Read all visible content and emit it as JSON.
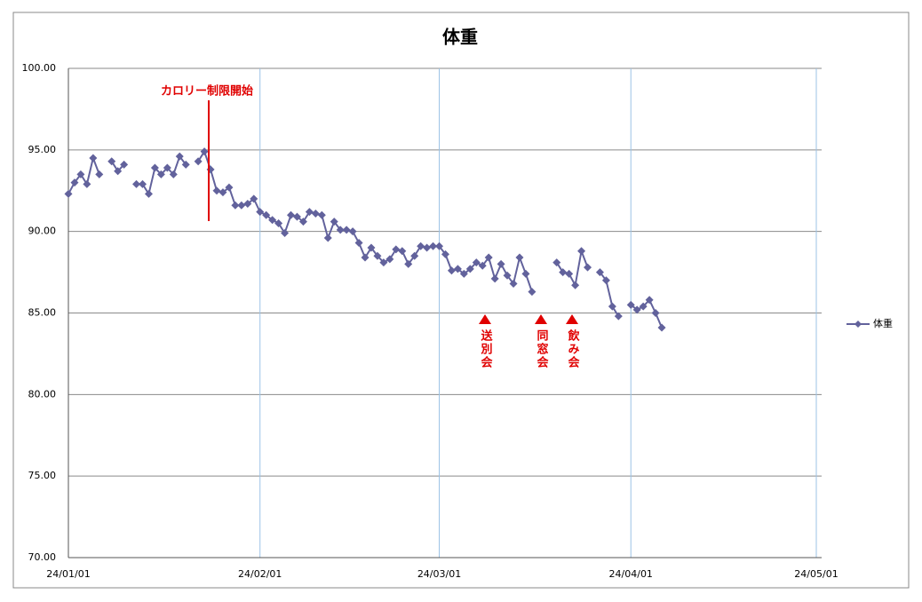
{
  "chart_data": {
    "type": "line",
    "title": "体重",
    "x": [
      "24/01/01",
      "24/01/02",
      "24/01/03",
      "24/01/04",
      "24/01/05",
      "24/01/06",
      "24/01/07",
      "24/01/08",
      "24/01/09",
      "24/01/10",
      "24/01/11",
      "24/01/12",
      "24/01/13",
      "24/01/14",
      "24/01/15",
      "24/01/16",
      "24/01/17",
      "24/01/18",
      "24/01/19",
      "24/01/20",
      "24/01/21",
      "24/01/22",
      "24/01/23",
      "24/01/24",
      "24/01/25",
      "24/01/26",
      "24/01/27",
      "24/01/28",
      "24/01/29",
      "24/01/30",
      "24/01/31",
      "24/02/01",
      "24/02/02",
      "24/02/03",
      "24/02/04",
      "24/02/05",
      "24/02/06",
      "24/02/07",
      "24/02/08",
      "24/02/09",
      "24/02/10",
      "24/02/11",
      "24/02/12",
      "24/02/13",
      "24/02/14",
      "24/02/15",
      "24/02/16",
      "24/02/17",
      "24/02/18",
      "24/02/19",
      "24/02/20",
      "24/02/21",
      "24/02/22",
      "24/02/23",
      "24/02/24",
      "24/02/25",
      "24/02/26",
      "24/02/27",
      "24/02/28",
      "24/02/29",
      "24/03/01",
      "24/03/02",
      "24/03/03",
      "24/03/04",
      "24/03/05",
      "24/03/06",
      "24/03/07",
      "24/03/08",
      "24/03/09",
      "24/03/10",
      "24/03/11",
      "24/03/12",
      "24/03/13",
      "24/03/14",
      "24/03/15",
      "24/03/16",
      "24/03/17",
      "24/03/18",
      "24/03/19",
      "24/03/20",
      "24/03/21",
      "24/03/22",
      "24/03/23",
      "24/03/24",
      "24/03/25",
      "24/03/26",
      "24/03/27",
      "24/03/28",
      "24/03/29",
      "24/03/30",
      "24/03/31",
      "24/04/01",
      "24/04/02",
      "24/04/03",
      "24/04/04",
      "24/04/05",
      "24/04/06"
    ],
    "series": [
      {
        "name": "体重",
        "color": "#62629c",
        "values": [
          92.3,
          93.0,
          93.5,
          92.9,
          94.5,
          93.5,
          null,
          94.3,
          93.7,
          94.1,
          null,
          92.9,
          92.9,
          92.3,
          93.9,
          93.5,
          93.9,
          93.5,
          94.6,
          94.1,
          null,
          94.3,
          94.9,
          93.8,
          92.5,
          92.4,
          92.7,
          91.6,
          91.6,
          91.7,
          92.0,
          91.2,
          91.0,
          90.7,
          90.5,
          89.9,
          91.0,
          90.9,
          90.6,
          91.2,
          91.1,
          91.0,
          89.6,
          90.6,
          90.1,
          90.1,
          90.0,
          89.3,
          88.4,
          89.0,
          88.5,
          88.1,
          88.3,
          88.9,
          88.8,
          88.0,
          88.5,
          89.1,
          89.0,
          89.1,
          89.1,
          88.6,
          87.6,
          87.7,
          87.4,
          87.7,
          88.1,
          87.9,
          88.4,
          87.1,
          88.0,
          87.3,
          86.8,
          88.4,
          87.4,
          86.3,
          null,
          null,
          null,
          88.1,
          87.5,
          87.4,
          86.7,
          88.8,
          87.8,
          null,
          87.5,
          87.0,
          85.4,
          84.8,
          null,
          85.5,
          85.2,
          85.4,
          85.8,
          85.0,
          84.1
        ]
      }
    ],
    "xlim": [
      "24/01/01",
      "24/05/01"
    ],
    "xticks": [
      "24/01/01",
      "24/02/01",
      "24/03/01",
      "24/04/01",
      "24/05/01"
    ],
    "ylim": [
      70,
      100
    ],
    "yticks": [
      {
        "value": 70,
        "label": "70.00"
      },
      {
        "value": 75,
        "label": "75.00"
      },
      {
        "value": 80,
        "label": "80.00"
      },
      {
        "value": 85,
        "label": "85.00"
      },
      {
        "value": 90,
        "label": "90.00"
      },
      {
        "value": 95,
        "label": "95.00"
      },
      {
        "value": 100,
        "label": "100.00"
      }
    ],
    "grid": true,
    "legend": "right",
    "annotations": [
      "カロリー制限開始",
      "送別会",
      "同窓会",
      "飲み会"
    ]
  }
}
